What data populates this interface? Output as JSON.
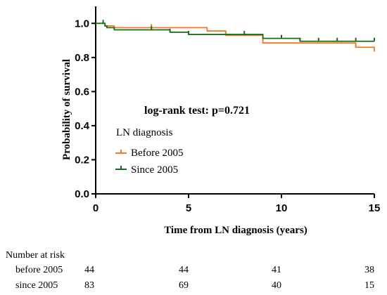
{
  "chart_data": {
    "type": "line",
    "subtype": "kaplan-meier",
    "xlabel": "Time from LN diagnosis (years)",
    "ylabel": "Probability of survival",
    "xlim": [
      0,
      15
    ],
    "ylim": [
      0,
      1.1
    ],
    "x_ticks": [
      "0",
      "5",
      "10",
      "15"
    ],
    "y_ticks": [
      "0.0",
      "0.2",
      "0.4",
      "0.6",
      "0.8",
      "1.0"
    ],
    "grid": false,
    "annotation": "log-rank test: p=0.721",
    "legend": {
      "title": "LN diagnosis",
      "placement": "center-left",
      "entries": [
        "Before 2005",
        "Since 2005"
      ]
    },
    "series": [
      {
        "name": "Before 2005",
        "color": "#F07A22",
        "steps": [
          [
            0,
            1.0
          ],
          [
            0.5,
            0.985
          ],
          [
            1.0,
            0.975
          ],
          [
            6.0,
            0.955
          ],
          [
            7.0,
            0.93
          ],
          [
            9.0,
            0.885
          ],
          [
            14.0,
            0.86
          ],
          [
            15.0,
            0.835
          ]
        ],
        "censored": [
          [
            3.0,
            0.975
          ],
          [
            7.0,
            0.93
          ],
          [
            14.0,
            0.86
          ]
        ]
      },
      {
        "name": "Since 2005",
        "color": "#1A6B1A",
        "steps": [
          [
            0,
            1.0
          ],
          [
            0.4,
            1.0
          ],
          [
            0.5,
            0.985
          ],
          [
            0.6,
            0.975
          ],
          [
            1.0,
            0.962
          ],
          [
            4.0,
            0.948
          ],
          [
            5.0,
            0.935
          ],
          [
            9.0,
            0.912
          ],
          [
            11.0,
            0.895
          ],
          [
            15.0,
            0.895
          ]
        ],
        "censored": [
          [
            0.4,
            1.0
          ],
          [
            3.0,
            0.962
          ],
          [
            4.0,
            0.948
          ],
          [
            5.0,
            0.935
          ],
          [
            8.0,
            0.935
          ],
          [
            10.0,
            0.912
          ],
          [
            11.0,
            0.895
          ],
          [
            12.0,
            0.895
          ],
          [
            13.0,
            0.895
          ],
          [
            14.0,
            0.895
          ],
          [
            15.0,
            0.895
          ]
        ]
      }
    ],
    "risk_table": {
      "title": "Number at risk",
      "times": [
        0,
        5,
        10,
        15
      ],
      "rows": [
        {
          "label": "before 2005",
          "values": [
            "44",
            "44",
            "41",
            "38"
          ]
        },
        {
          "label": "since 2005",
          "values": [
            "83",
            "69",
            "40",
            "15"
          ]
        }
      ]
    }
  }
}
